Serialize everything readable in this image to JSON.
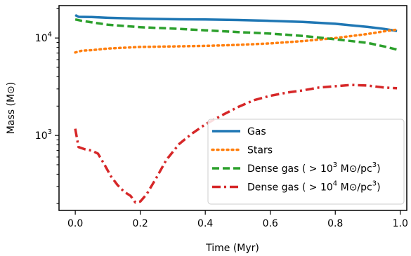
{
  "chart_data": {
    "type": "line",
    "xlabel": "Time (Myr)",
    "ylabel": "Mass (M⊙)",
    "xlim": [
      -0.05,
      1.02
    ],
    "ylim": [
      170,
      21500
    ],
    "yscale": "log",
    "grid": false,
    "legend_placement": "lower-right",
    "x_ticks": [
      {
        "value": 0.0,
        "label": "0.0"
      },
      {
        "value": 0.2,
        "label": "0.2"
      },
      {
        "value": 0.4,
        "label": "0.4"
      },
      {
        "value": 0.6,
        "label": "0.6"
      },
      {
        "value": 0.8,
        "label": "0.8"
      },
      {
        "value": 1.0,
        "label": "1.0"
      }
    ],
    "y_ticks": [
      {
        "value": 1000,
        "base": "10",
        "exp": "3"
      },
      {
        "value": 10000,
        "base": "10",
        "exp": "4"
      }
    ],
    "series": [
      {
        "name": "Gas",
        "color": "#1f77b4",
        "dash": "solid",
        "x": [
          0.0,
          0.01,
          0.05,
          0.1,
          0.2,
          0.3,
          0.4,
          0.5,
          0.6,
          0.7,
          0.8,
          0.9,
          0.95,
          0.99
        ],
        "y": [
          17200,
          16500,
          16400,
          16100,
          15800,
          15600,
          15500,
          15300,
          15000,
          14600,
          14000,
          13000,
          12400,
          11800
        ]
      },
      {
        "name": "Stars",
        "color": "#ff7f0e",
        "dash": "dotted",
        "x": [
          0.0,
          0.02,
          0.05,
          0.1,
          0.2,
          0.3,
          0.4,
          0.5,
          0.6,
          0.7,
          0.8,
          0.9,
          0.95,
          0.99
        ],
        "y": [
          7100,
          7400,
          7500,
          7800,
          8100,
          8200,
          8300,
          8500,
          8800,
          9300,
          10000,
          11000,
          11700,
          12200
        ]
      },
      {
        "name": "Dense gas",
        "label_main": "Dense gas (",
        "label_num": "10",
        "label_exp": "3",
        "label_unit": " M⊙/pc",
        "label_unit_exp": "3",
        "label_close": ")",
        "color": "#2ca02c",
        "dash": "dashed",
        "x": [
          0.0,
          0.02,
          0.05,
          0.1,
          0.2,
          0.3,
          0.4,
          0.5,
          0.6,
          0.7,
          0.8,
          0.9,
          0.95,
          0.99
        ],
        "y": [
          15500,
          15000,
          14500,
          13700,
          12900,
          12500,
          12000,
          11500,
          11100,
          10500,
          9700,
          8900,
          8200,
          7600
        ]
      },
      {
        "name": "Dense gas",
        "label_main": "Dense gas (",
        "label_num": "10",
        "label_exp": "4",
        "label_unit": " M⊙/pc",
        "label_unit_exp": "3",
        "label_close": ")",
        "color": "#d62728",
        "dash": "dashdot",
        "x": [
          0.0,
          0.01,
          0.03,
          0.05,
          0.07,
          0.09,
          0.11,
          0.13,
          0.15,
          0.17,
          0.185,
          0.2,
          0.22,
          0.25,
          0.28,
          0.32,
          0.36,
          0.4,
          0.45,
          0.5,
          0.55,
          0.6,
          0.65,
          0.7,
          0.75,
          0.8,
          0.85,
          0.9,
          0.95,
          0.99
        ],
        "y": [
          1170,
          760,
          720,
          700,
          650,
          500,
          380,
          310,
          265,
          240,
          205,
          210,
          250,
          370,
          560,
          820,
          1050,
          1300,
          1600,
          1950,
          2300,
          2550,
          2750,
          2900,
          3100,
          3200,
          3300,
          3250,
          3100,
          3050
        ]
      }
    ]
  }
}
